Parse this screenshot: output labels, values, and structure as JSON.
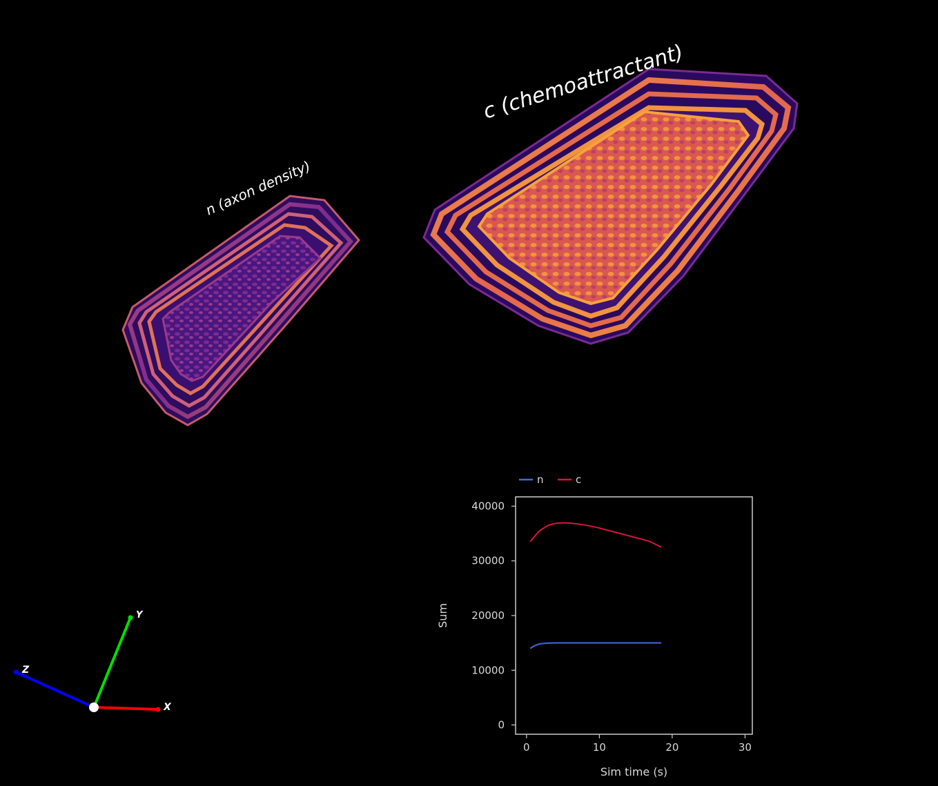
{
  "viewport": {
    "surfaces": [
      {
        "label": "n (axon density)",
        "field": "n"
      },
      {
        "label": "c (chemoattractant)",
        "field": "c"
      }
    ],
    "axes_widget": {
      "x_label": "X",
      "y_label": "Y",
      "z_label": "Z",
      "x_color": "#ff0000",
      "y_color": "#00e000",
      "z_color": "#0000ff"
    }
  },
  "colormap": [
    "#2a0a6b",
    "#5b1a8c",
    "#a43a8a",
    "#e06a4c",
    "#f7a23a"
  ],
  "chart_data": {
    "type": "line",
    "xlabel": "Sim time (s)",
    "ylabel": "Sum",
    "xlim": [
      -1.5,
      31
    ],
    "ylim": [
      -1700,
      41700
    ],
    "xticks": [
      0,
      10,
      20,
      30
    ],
    "yticks": [
      0,
      10000,
      20000,
      30000,
      40000
    ],
    "legend_position": "top-left",
    "series": [
      {
        "name": "n",
        "color": "#4169e1",
        "x": [
          0.5,
          1,
          1.5,
          2,
          3,
          4,
          5,
          6,
          8,
          10,
          12,
          14,
          16,
          18.5
        ],
        "y": [
          14000,
          14400,
          14700,
          14850,
          14970,
          15000,
          15010,
          15010,
          15010,
          15010,
          15010,
          15010,
          15010,
          15010
        ]
      },
      {
        "name": "c",
        "color": "#dc143c",
        "x": [
          0.5,
          1,
          1.5,
          2,
          3,
          4,
          5,
          6,
          7,
          8,
          9,
          10,
          11,
          12,
          13,
          14,
          15,
          16,
          17,
          18.5
        ],
        "y": [
          33500,
          34300,
          35100,
          35700,
          36500,
          36850,
          36950,
          36900,
          36750,
          36550,
          36300,
          36000,
          35650,
          35300,
          34950,
          34600,
          34250,
          33900,
          33500,
          32500
        ]
      }
    ]
  }
}
